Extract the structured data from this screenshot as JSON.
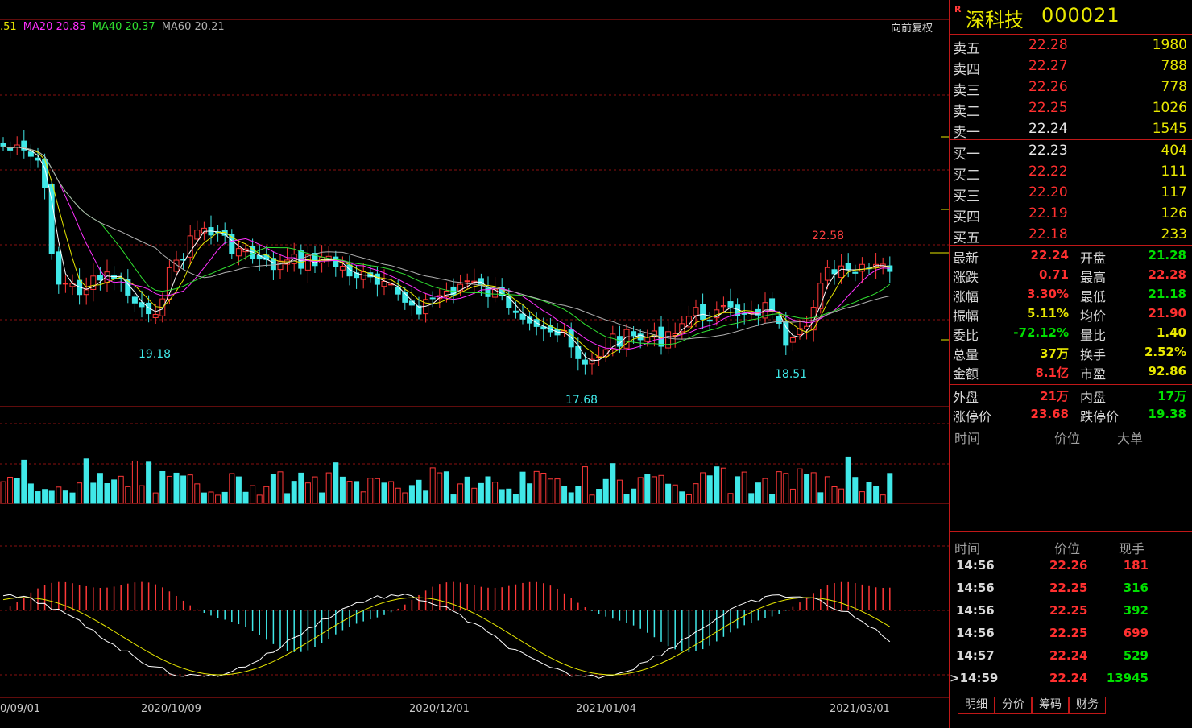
{
  "stock": {
    "r_mark": "R",
    "name": "深科技",
    "code": "000021"
  },
  "adjust_button": "向前复权",
  "ma_legend": [
    {
      "text": ".51",
      "color": "#e8e800"
    },
    {
      "text": "MA20 20.85",
      "color": "#ff30ff"
    },
    {
      "text": "MA40 20.37",
      "color": "#30e030"
    },
    {
      "text": "MA60 20.21",
      "color": "#b0b0b0"
    }
  ],
  "chart_labels": {
    "high": "22.58",
    "low1": "19.18",
    "low2": "17.68",
    "low3": "18.51"
  },
  "x_axis": [
    "0/09/01",
    "2020/10/09",
    "2020/12/01",
    "2021/01/04",
    "2021/03/01"
  ],
  "sell": [
    {
      "label": "卖五",
      "price": "22.28",
      "vol": "1980",
      "color": "red"
    },
    {
      "label": "卖四",
      "price": "22.27",
      "vol": "788",
      "color": "red"
    },
    {
      "label": "卖三",
      "price": "22.26",
      "vol": "778",
      "color": "red"
    },
    {
      "label": "卖二",
      "price": "22.25",
      "vol": "1026",
      "color": "red"
    },
    {
      "label": "卖一",
      "price": "22.24",
      "vol": "1545",
      "color": "white"
    }
  ],
  "buy": [
    {
      "label": "买一",
      "price": "22.23",
      "vol": "404",
      "color": "white"
    },
    {
      "label": "买二",
      "price": "22.22",
      "vol": "111",
      "color": "red"
    },
    {
      "label": "买三",
      "price": "22.20",
      "vol": "117",
      "color": "red"
    },
    {
      "label": "买四",
      "price": "22.19",
      "vol": "126",
      "color": "red"
    },
    {
      "label": "买五",
      "price": "22.18",
      "vol": "233",
      "color": "red"
    }
  ],
  "stats": [
    {
      "l": "最新",
      "lv": "22.24",
      "lc": "red",
      "r": "开盘",
      "rv": "21.28",
      "rc": "green"
    },
    {
      "l": "涨跌",
      "lv": "0.71",
      "lc": "red",
      "r": "最高",
      "rv": "22.28",
      "rc": "red"
    },
    {
      "l": "涨幅",
      "lv": "3.30%",
      "lc": "red",
      "r": "最低",
      "rv": "21.18",
      "rc": "green"
    },
    {
      "l": "振幅",
      "lv": "5.11%",
      "lc": "yellow",
      "r": "均价",
      "rv": "21.90",
      "rc": "red"
    },
    {
      "l": "委比",
      "lv": "-72.12%",
      "lc": "green",
      "r": "量比",
      "rv": "1.40",
      "rc": "yellow"
    },
    {
      "l": "总量",
      "lv": "37万",
      "lc": "yellow",
      "r": "换手",
      "rv": "2.52%",
      "rc": "yellow"
    },
    {
      "l": "金额",
      "lv": "8.1亿",
      "lc": "red",
      "r": "市盈",
      "rv": "92.86",
      "rc": "yellow"
    }
  ],
  "extra": [
    {
      "l": "外盘",
      "lv": "21万",
      "lc": "red",
      "r": "内盘",
      "rv": "17万",
      "rc": "green"
    },
    {
      "l": "涨停价",
      "lv": "23.68",
      "lc": "red",
      "r": "跌停价",
      "rv": "19.38",
      "rc": "green"
    }
  ],
  "big_order_header": {
    "time": "时间",
    "price": "价位",
    "big": "大单"
  },
  "tick_header": {
    "time": "时间",
    "price": "价位",
    "vol": "现手"
  },
  "ticks": [
    {
      "time": "14:56",
      "price": "22.26",
      "vol": "181",
      "vc": "red"
    },
    {
      "time": "14:56",
      "price": "22.25",
      "vol": "316",
      "vc": "green"
    },
    {
      "time": "14:56",
      "price": "22.25",
      "vol": "392",
      "vc": "green"
    },
    {
      "time": "14:56",
      "price": "22.25",
      "vol": "699",
      "vc": "red"
    },
    {
      "time": "14:57",
      "price": "22.24",
      "vol": "529",
      "vc": "green"
    },
    {
      "time": ">14:59",
      "price": "22.24",
      "vol": "13945",
      "vc": "green"
    }
  ],
  "tabs": [
    "明细",
    "分价",
    "筹码",
    "财务"
  ]
}
